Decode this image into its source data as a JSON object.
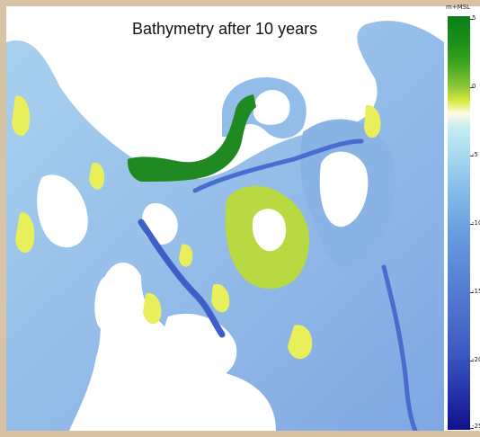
{
  "map": {
    "title": "Bathymetry after 10 years",
    "colorbar": {
      "unit": "m+MSL",
      "ticks": [
        "5",
        "0",
        "-5",
        "-10",
        "-15",
        "-20",
        "-25"
      ],
      "colors": [
        "#0a7d16",
        "#d8ea3c",
        "#fffbe4",
        "#a9dcf0",
        "#5a86d6",
        "#0f128a"
      ]
    },
    "colors": {
      "land": "#ffffff",
      "channel": "#8fbfe6",
      "deep_channel": "#3f5fc8",
      "shoal": "#e8ef5a",
      "high_ground": "#1f8a22",
      "frame": "#d8c3a5"
    }
  }
}
